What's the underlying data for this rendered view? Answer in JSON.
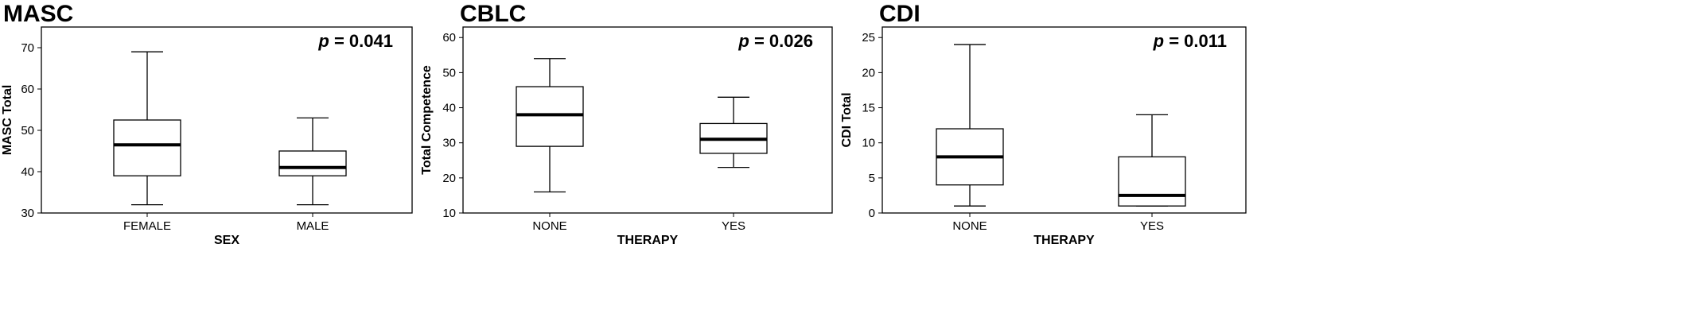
{
  "chart_data": [
    {
      "type": "box",
      "title": "MASC",
      "xlabel": "SEX",
      "ylabel": "MASC Total",
      "ylim": [
        30,
        75
      ],
      "yticks": [
        30,
        40,
        50,
        60,
        70
      ],
      "annotation": {
        "prefix": "p",
        "text": " = 0.041"
      },
      "categories": [
        "FEMALE",
        "MALE"
      ],
      "boxes": [
        {
          "min": 32,
          "q1": 39,
          "median": 46.5,
          "q3": 52.5,
          "max": 69
        },
        {
          "min": 32,
          "q1": 39,
          "median": 41,
          "q3": 45,
          "max": 53
        }
      ]
    },
    {
      "type": "box",
      "title": "CBLC",
      "xlabel": "THERAPY",
      "ylabel": "Total Competence",
      "ylim": [
        10,
        63
      ],
      "yticks": [
        10,
        20,
        30,
        40,
        50,
        60
      ],
      "annotation": {
        "prefix": "p",
        "text": " = 0.026"
      },
      "categories": [
        "NONE",
        "YES"
      ],
      "boxes": [
        {
          "min": 16,
          "q1": 29,
          "median": 38,
          "q3": 46,
          "max": 54
        },
        {
          "min": 23,
          "q1": 27,
          "median": 31,
          "q3": 35.5,
          "max": 43
        }
      ]
    },
    {
      "type": "box",
      "title": "CDI",
      "xlabel": "THERAPY",
      "ylabel": "CDI Total",
      "ylim": [
        0,
        26.5
      ],
      "yticks": [
        0,
        5,
        10,
        15,
        20,
        25
      ],
      "annotation": {
        "prefix": "p",
        "text": " = 0.011"
      },
      "categories": [
        "NONE",
        "YES"
      ],
      "boxes": [
        {
          "min": 1,
          "q1": 4,
          "median": 8,
          "q3": 12,
          "max": 24
        },
        {
          "min": 1,
          "q1": 1,
          "median": 2.5,
          "q3": 8,
          "max": 14
        }
      ]
    }
  ]
}
